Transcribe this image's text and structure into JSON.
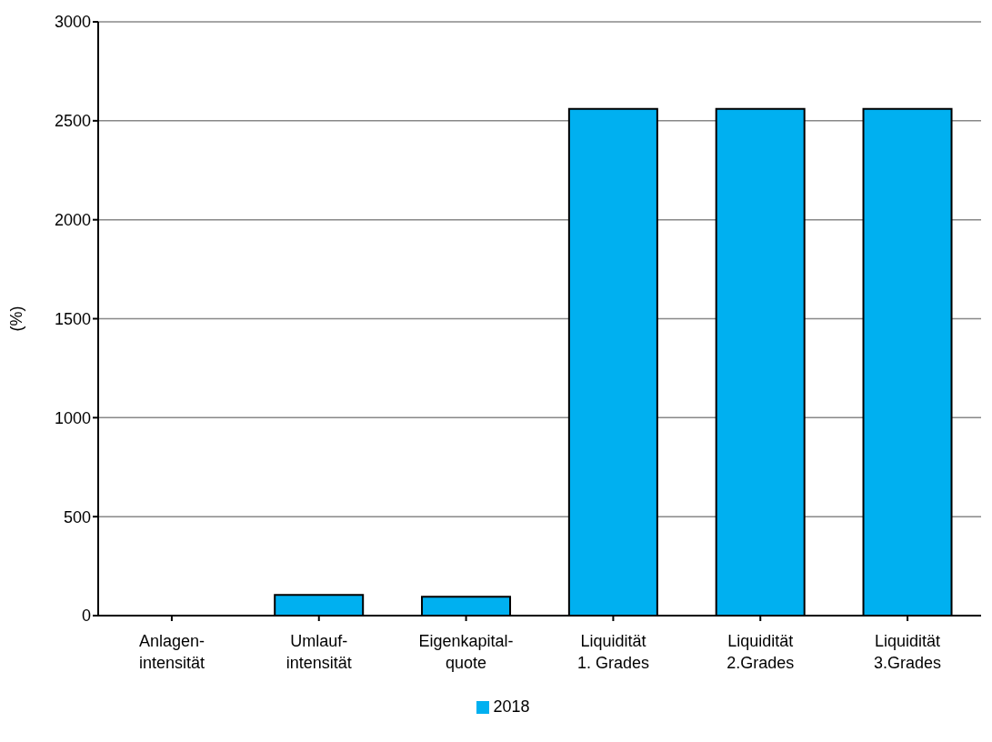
{
  "chart_data": {
    "type": "bar",
    "ylabel": "(%)",
    "categories": [
      "Anlagen-\nintensität",
      "Umlauf-\nintensität",
      "Eigenkapital-\nquote",
      "Liquidität\n1. Grades",
      "Liquidität\n2.Grades",
      "Liquidität\n3.Grades"
    ],
    "series": [
      {
        "name": "2018",
        "color": "#00b0f0",
        "values": [
          0,
          105,
          95,
          2560,
          2560,
          2560
        ]
      }
    ],
    "ylim": [
      0,
      3000
    ],
    "yticks": [
      0,
      500,
      1000,
      1500,
      2000,
      2500,
      3000
    ],
    "grid": "y",
    "legend": "bottom"
  }
}
